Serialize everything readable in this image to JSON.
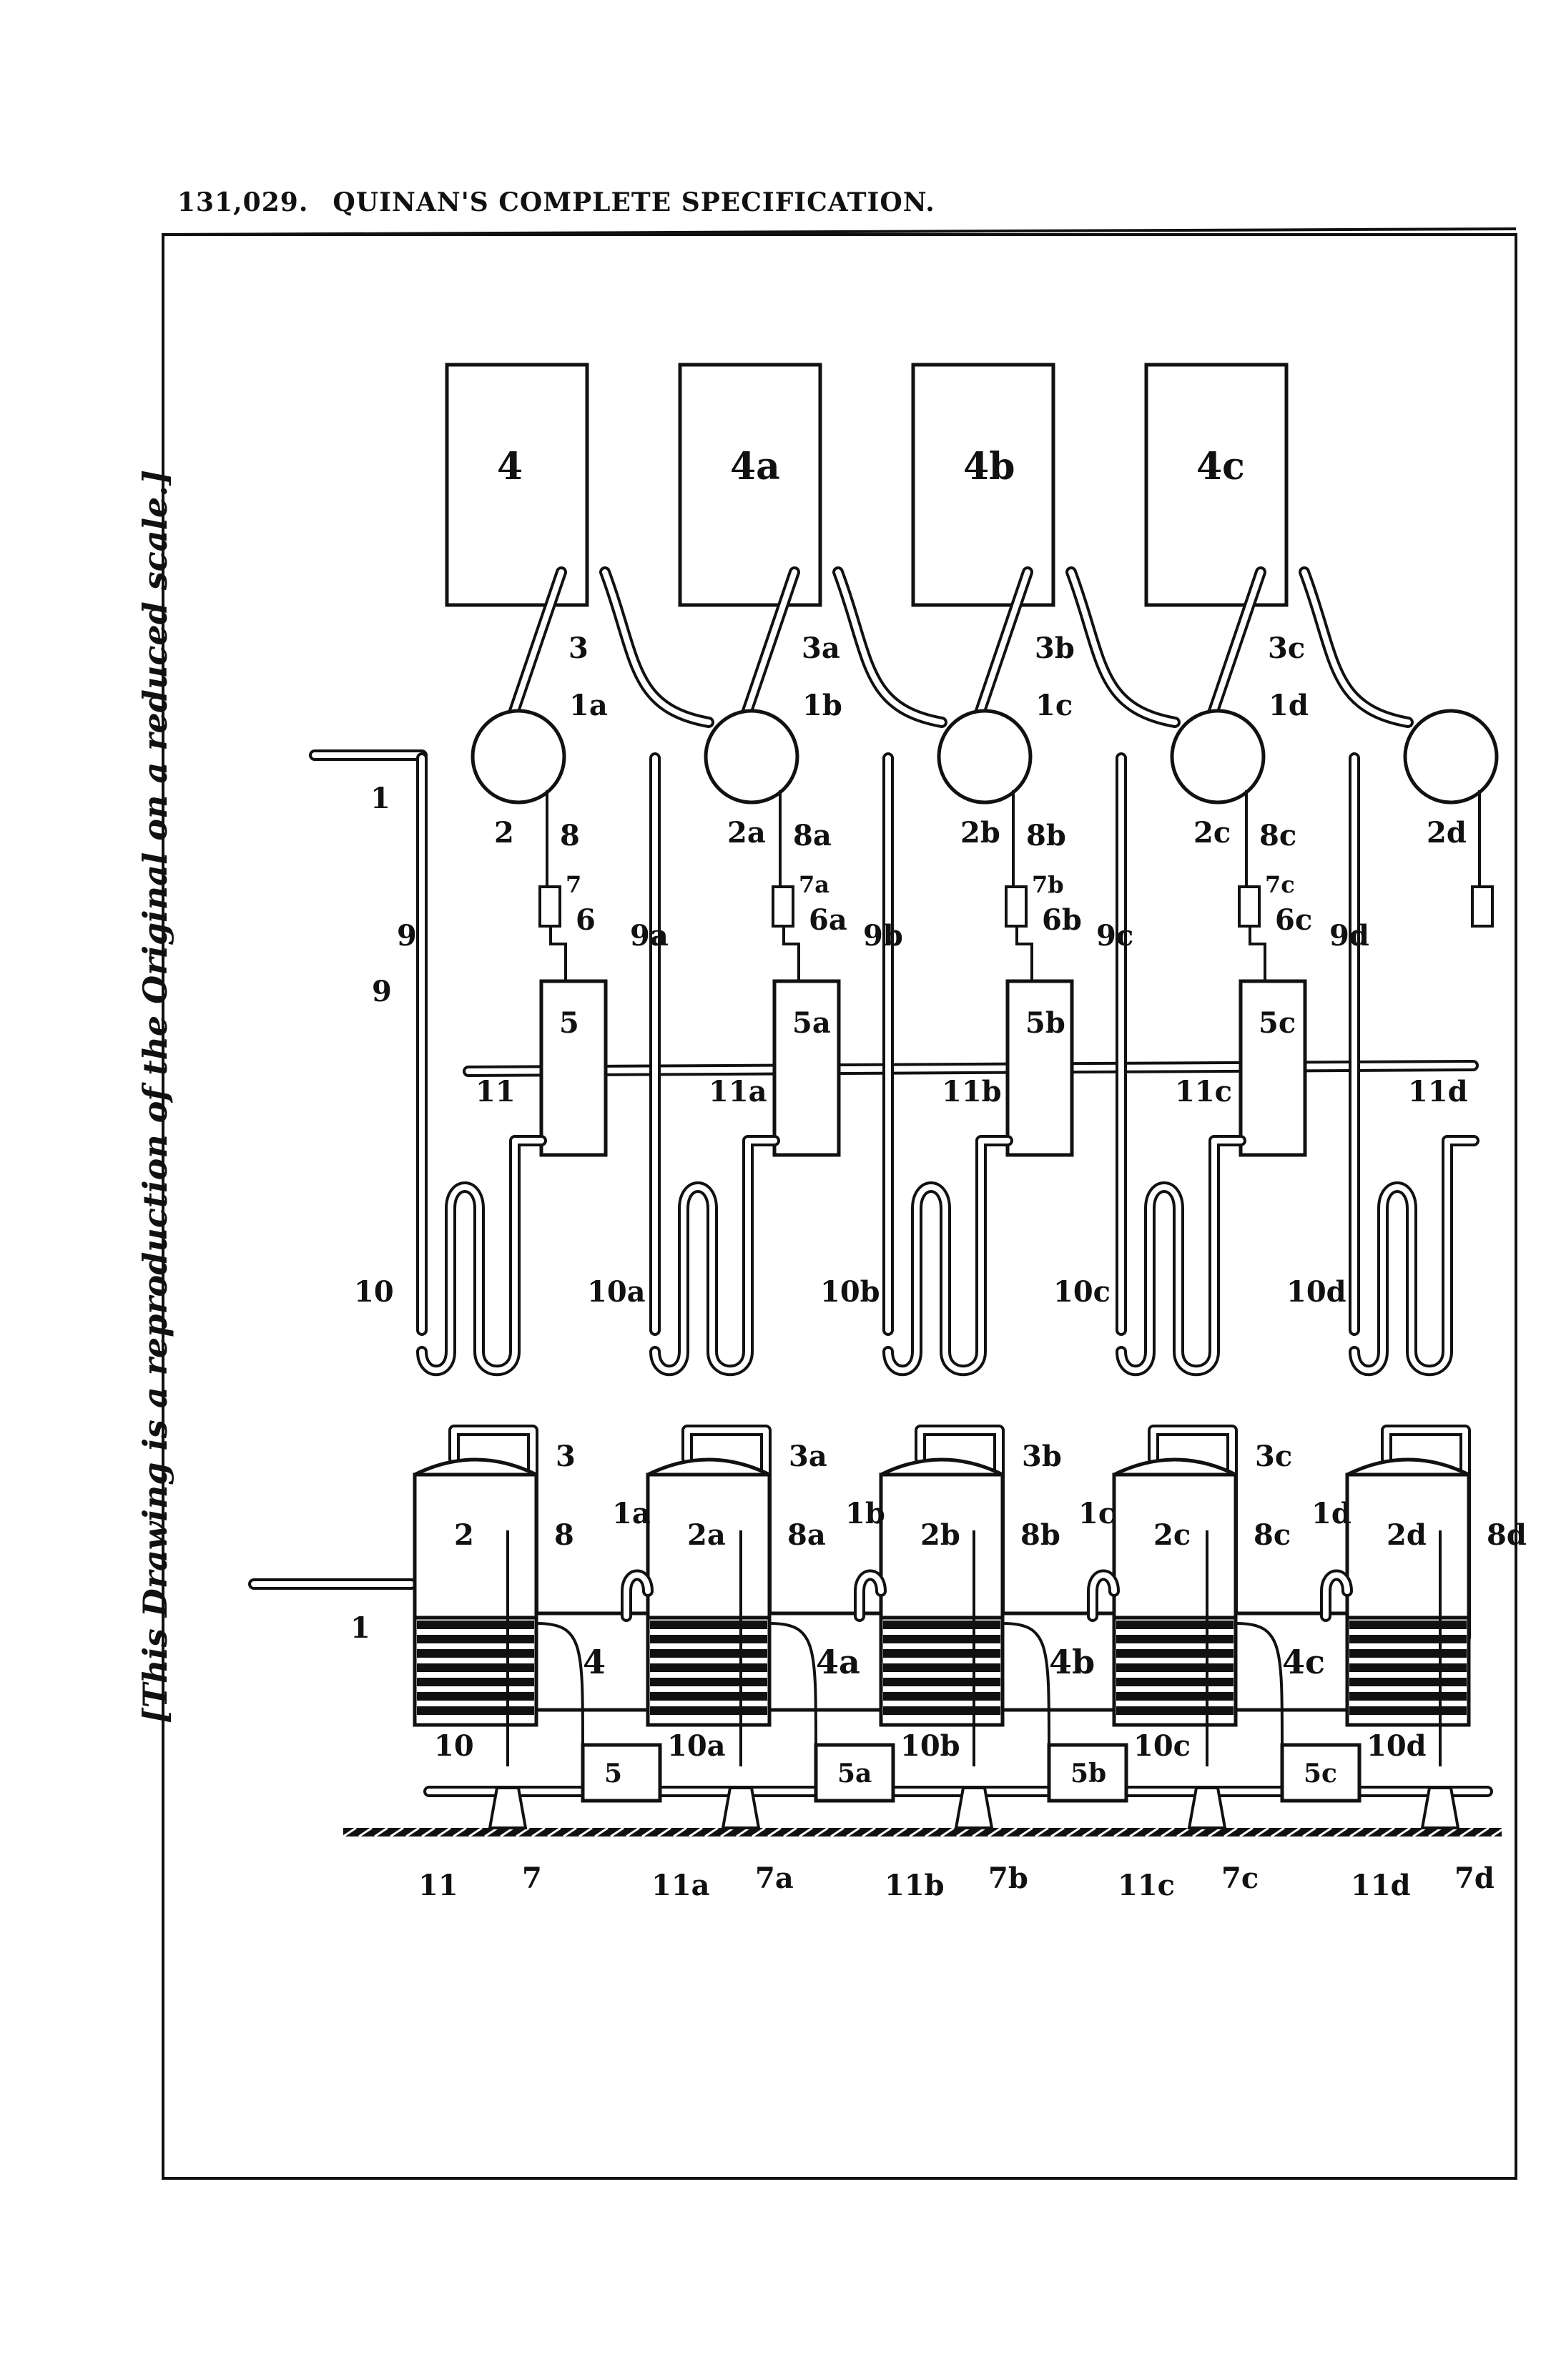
{
  "header": {
    "number": "131,029.",
    "title": "QUINAN'S COMPLETE SPECIFICATION."
  },
  "side_note": "[This Drawing is a reproduction of the Original on a reduced scale.]",
  "plan": {
    "units": [
      {
        "tank": "4",
        "still": "2",
        "pipe3": "3",
        "pipe1": "",
        "pipe8": "8",
        "valve": "7",
        "pipe6": "6",
        "vessel": "5",
        "pipe9": "9",
        "line11": "11",
        "coil": "10"
      },
      {
        "tank": "4a",
        "still": "2a",
        "pipe3": "3a",
        "pipe1": "1a",
        "pipe8": "8a",
        "valve": "7a",
        "pipe6": "6a",
        "vessel": "5a",
        "pipe9": "9a",
        "line11": "11a",
        "coil": "10a"
      },
      {
        "tank": "4b",
        "still": "2b",
        "pipe3": "3b",
        "pipe1": "1b",
        "pipe8": "8b",
        "valve": "7b",
        "pipe6": "6b",
        "vessel": "5b",
        "pipe9": "9b",
        "line11": "11b",
        "coil": "10b"
      },
      {
        "tank": "4c",
        "still": "2c",
        "pipe3": "3c",
        "pipe1": "1c",
        "pipe8": "8c",
        "valve": "7c",
        "pipe6": "6c",
        "vessel": "5c",
        "pipe9": "9c",
        "line11": "11c",
        "coil": "10c"
      },
      {
        "tank": "",
        "still": "2d",
        "pipe3": "",
        "pipe1": "1d",
        "pipe8": "",
        "valve": "",
        "pipe6": "",
        "vessel": "",
        "pipe9": "9d",
        "line11": "11d",
        "coil": "10d"
      }
    ],
    "inlet": "1"
  },
  "elevation": {
    "units": [
      {
        "still": "2",
        "pipe3": "3",
        "pipe1": "",
        "pipe8": "8",
        "tank": "4",
        "coil": "10",
        "vessel": "5",
        "line11": "11",
        "valve": "7"
      },
      {
        "still": "2a",
        "pipe3": "3a",
        "pipe1": "1a",
        "pipe8": "8a",
        "tank": "4a",
        "coil": "10a",
        "vessel": "5a",
        "line11": "11a",
        "valve": "7a"
      },
      {
        "still": "2b",
        "pipe3": "3b",
        "pipe1": "1b",
        "pipe8": "8b",
        "tank": "4b",
        "coil": "10b",
        "vessel": "5b",
        "line11": "11b",
        "valve": "7b"
      },
      {
        "still": "2c",
        "pipe3": "3c",
        "pipe1": "1c",
        "pipe8": "8c",
        "tank": "4c",
        "coil": "10c",
        "vessel": "5c",
        "line11": "11c",
        "valve": "7c"
      },
      {
        "still": "2d",
        "pipe3": "",
        "pipe1": "1d",
        "pipe8": "8d",
        "tank": "",
        "coil": "10d",
        "vessel": "",
        "line11": "11d",
        "valve": "7d"
      }
    ],
    "inlet": "1"
  }
}
